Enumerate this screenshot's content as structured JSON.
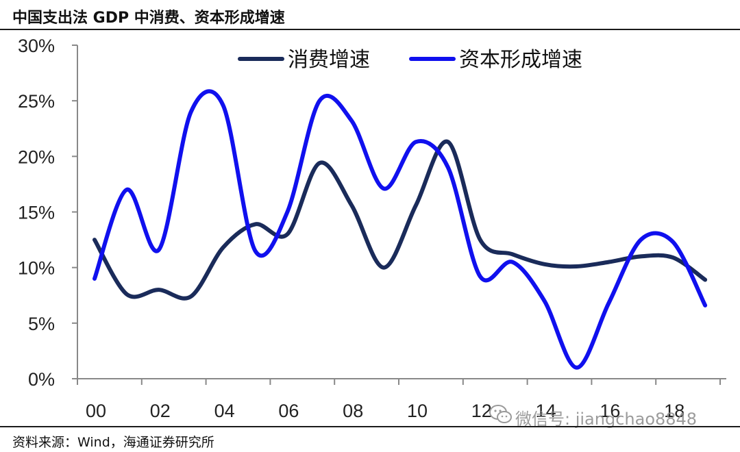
{
  "title": "中国支出法 GDP 中消费、资本形成增速",
  "source": "资料来源：Wind，海通证券研究所",
  "watermark": "微信号: jiangchao8848",
  "colors": {
    "consumption": "#1a2b5a",
    "capital": "#1010ee",
    "axis": "#888888"
  },
  "chart_data": {
    "type": "line",
    "x": [
      "00",
      "01",
      "02",
      "03",
      "04",
      "05",
      "06",
      "07",
      "08",
      "09",
      "10",
      "11",
      "12",
      "13",
      "14",
      "15",
      "16",
      "17",
      "18",
      "19"
    ],
    "x_tick_labels": [
      "00",
      "02",
      "04",
      "06",
      "08",
      "10",
      "12",
      "14",
      "16",
      "18"
    ],
    "y_tick_labels": [
      "0%",
      "5%",
      "10%",
      "15%",
      "20%",
      "25%",
      "30%"
    ],
    "ylim": [
      0,
      30
    ],
    "grid": false,
    "legend_position": "top",
    "series": [
      {
        "name": "消费增速",
        "values": [
          12.5,
          7.6,
          8.0,
          7.4,
          11.8,
          13.9,
          13.0,
          19.4,
          15.6,
          10.0,
          15.6,
          21.3,
          12.5,
          11.2,
          10.3,
          10.1,
          10.5,
          11.0,
          10.9,
          8.9
        ]
      },
      {
        "name": "资本形成增速",
        "values": [
          9.0,
          17.0,
          11.6,
          24.0,
          24.6,
          11.5,
          15.0,
          25.0,
          23.2,
          17.1,
          21.3,
          19.0,
          9.2,
          10.5,
          7.0,
          1.0,
          6.8,
          12.5,
          12.3,
          6.6
        ]
      }
    ]
  }
}
